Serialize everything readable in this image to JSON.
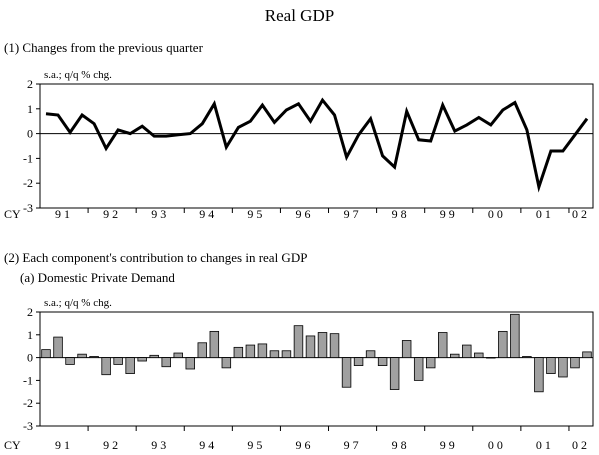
{
  "title": "Real GDP",
  "section1": {
    "heading": "(1) Changes from the previous quarter"
  },
  "section2": {
    "heading": "(2) Each component's contribution to changes in real GDP",
    "subheading": "(a) Domestic Private Demand"
  },
  "chart_data": [
    {
      "type": "line",
      "ylabel": "s.a.; q/q % chg.",
      "ylim": [
        -3,
        2
      ],
      "yticks": [
        2,
        1,
        0,
        -1,
        -2,
        -3
      ],
      "x_axis_prefix": "CY",
      "year_labels": [
        "91",
        "92",
        "93",
        "94",
        "95",
        "96",
        "97",
        "98",
        "99",
        "00",
        "01",
        "02"
      ],
      "x": [
        "91Q1",
        "91Q2",
        "91Q3",
        "91Q4",
        "92Q1",
        "92Q2",
        "92Q3",
        "92Q4",
        "93Q1",
        "93Q2",
        "93Q3",
        "93Q4",
        "94Q1",
        "94Q2",
        "94Q3",
        "94Q4",
        "95Q1",
        "95Q2",
        "95Q3",
        "95Q4",
        "96Q1",
        "96Q2",
        "96Q3",
        "96Q4",
        "97Q1",
        "97Q2",
        "97Q3",
        "97Q4",
        "98Q1",
        "98Q2",
        "98Q3",
        "98Q4",
        "99Q1",
        "99Q2",
        "99Q3",
        "99Q4",
        "00Q1",
        "00Q2",
        "00Q3",
        "00Q4",
        "01Q1",
        "01Q2",
        "01Q3",
        "01Q4",
        "02Q1",
        "02Q2"
      ],
      "series": [
        {
          "values": [
            0.8,
            0.75,
            0.05,
            0.75,
            0.4,
            -0.6,
            0.15,
            0.0,
            0.3,
            -0.1,
            -0.1,
            -0.05,
            0.0,
            0.4,
            1.2,
            -0.55,
            0.25,
            0.5,
            1.15,
            0.45,
            0.95,
            1.2,
            0.5,
            1.35,
            0.75,
            -0.95,
            -0.05,
            0.6,
            -0.9,
            -1.35,
            0.9,
            -0.25,
            -0.3,
            1.15,
            0.1,
            0.35,
            0.65,
            0.35,
            0.95,
            1.25,
            0.15,
            -2.15,
            -0.7,
            -0.7,
            -0.05,
            0.6
          ]
        }
      ],
      "color": "#000000"
    },
    {
      "type": "bar",
      "ylabel": "s.a.; q/q % chg.",
      "ylim": [
        -3,
        2
      ],
      "yticks": [
        2,
        1,
        0,
        -1,
        -2,
        -3
      ],
      "x_axis_prefix": "CY",
      "year_labels": [
        "91",
        "92",
        "93",
        "94",
        "95",
        "96",
        "97",
        "98",
        "99",
        "00",
        "01",
        "02"
      ],
      "x": [
        "91Q1",
        "91Q2",
        "91Q3",
        "91Q4",
        "92Q1",
        "92Q2",
        "92Q3",
        "92Q4",
        "93Q1",
        "93Q2",
        "93Q3",
        "93Q4",
        "94Q1",
        "94Q2",
        "94Q3",
        "94Q4",
        "95Q1",
        "95Q2",
        "95Q3",
        "95Q4",
        "96Q1",
        "96Q2",
        "96Q3",
        "96Q4",
        "97Q1",
        "97Q2",
        "97Q3",
        "97Q4",
        "98Q1",
        "98Q2",
        "98Q3",
        "98Q4",
        "99Q1",
        "99Q2",
        "99Q3",
        "99Q4",
        "00Q1",
        "00Q2",
        "00Q3",
        "00Q4",
        "01Q1",
        "01Q2",
        "01Q3",
        "01Q4",
        "02Q1",
        "02Q2"
      ],
      "series": [
        {
          "values": [
            0.35,
            0.9,
            -0.3,
            0.15,
            0.05,
            -0.75,
            -0.3,
            -0.7,
            -0.15,
            0.1,
            -0.4,
            0.2,
            -0.5,
            0.65,
            1.15,
            -0.45,
            0.45,
            0.55,
            0.6,
            0.3,
            0.3,
            1.4,
            0.95,
            1.1,
            1.05,
            -1.3,
            -0.35,
            0.3,
            -0.35,
            -1.4,
            0.75,
            -1.0,
            -0.45,
            1.1,
            0.15,
            0.55,
            0.2,
            0.0,
            1.15,
            1.9,
            0.05,
            -1.5,
            -0.7,
            -0.85,
            -0.45,
            0.25
          ]
        }
      ],
      "color": "#a0a0a0"
    }
  ]
}
